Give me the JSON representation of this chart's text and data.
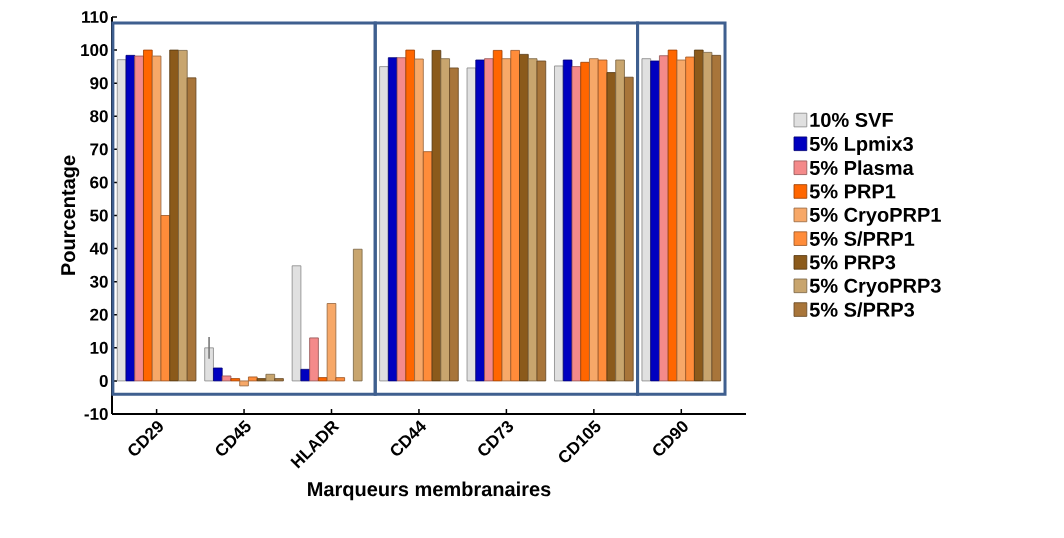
{
  "chart_data": {
    "type": "bar",
    "xlabel": "Marqueurs membranaires",
    "ylabel": "Pourcentage",
    "categories": [
      "CD29",
      "CD45",
      "HLADR",
      "CD44",
      "CD73",
      "CD105",
      "CD90"
    ],
    "ylim": [
      -10,
      110
    ],
    "yticks": [
      -10,
      0,
      10,
      20,
      30,
      40,
      50,
      60,
      70,
      80,
      90,
      100,
      110
    ],
    "legend": "right",
    "grid": false,
    "series": [
      {
        "name": "10% SVF",
        "color": "#e0e0e0",
        "values": [
          97.1,
          10,
          34.8,
          95,
          94.6,
          95.2,
          97.4
        ],
        "errors": [
          null,
          3.3,
          null,
          null,
          null,
          null,
          null
        ]
      },
      {
        "name": "5% Lpmix3",
        "color": "#0000c0",
        "values": [
          98.4,
          3.9,
          3.5,
          97.7,
          97,
          97,
          96.7
        ]
      },
      {
        "name": "5% Plasma",
        "color": "#f48a8a",
        "values": [
          98.2,
          1.5,
          13,
          97.7,
          97.4,
          95,
          98.3
        ]
      },
      {
        "name": "5% PRP1",
        "color": "#ff6600",
        "values": [
          100,
          0.7,
          1,
          100,
          99.9,
          96.3,
          100
        ]
      },
      {
        "name": "5% CryoPRP1",
        "color": "#f7a868",
        "values": [
          98.2,
          -1.5,
          23.4,
          97.3,
          97.4,
          97.4,
          97
        ]
      },
      {
        "name": "5% S/PRP1",
        "color": "#ff8c3a",
        "values": [
          50,
          1.2,
          1,
          69.3,
          99.9,
          97,
          97.9
        ]
      },
      {
        "name": "5% PRP3",
        "color": "#8b5a1b",
        "values": [
          100,
          0.7,
          null,
          99.9,
          98.7,
          93.2,
          100
        ]
      },
      {
        "name": "5% CryoPRP3",
        "color": "#c8a56e",
        "values": [
          99.9,
          2,
          39.8,
          97.4,
          97.4,
          97,
          99.3
        ]
      },
      {
        "name": "5% S/PRP3",
        "color": "#a8753a",
        "values": [
          91.6,
          0.7,
          null,
          94.6,
          96.7,
          91.8,
          98.4
        ]
      }
    ]
  }
}
